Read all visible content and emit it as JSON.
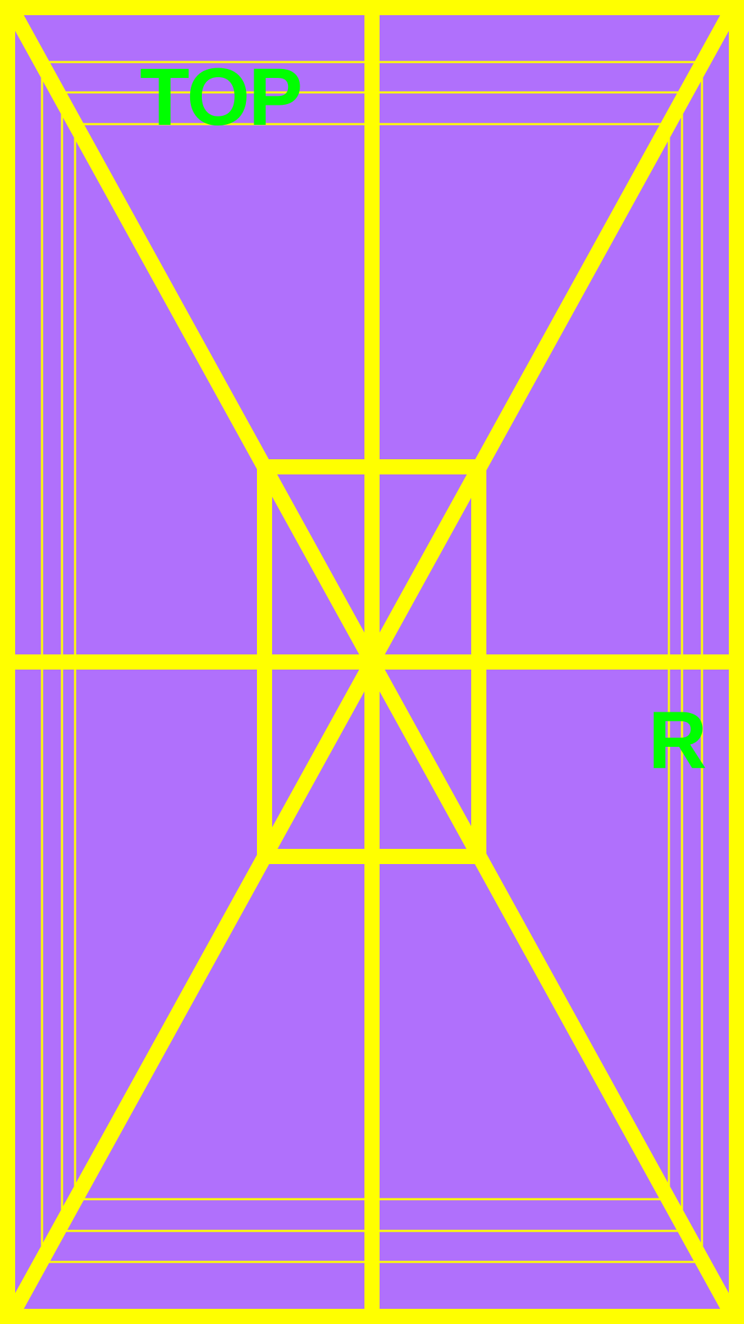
{
  "colors": {
    "background": "#B070FC",
    "lines": "#FFFF00",
    "text": "#00FF00"
  },
  "labels": {
    "top": "TOP",
    "right": "R"
  }
}
